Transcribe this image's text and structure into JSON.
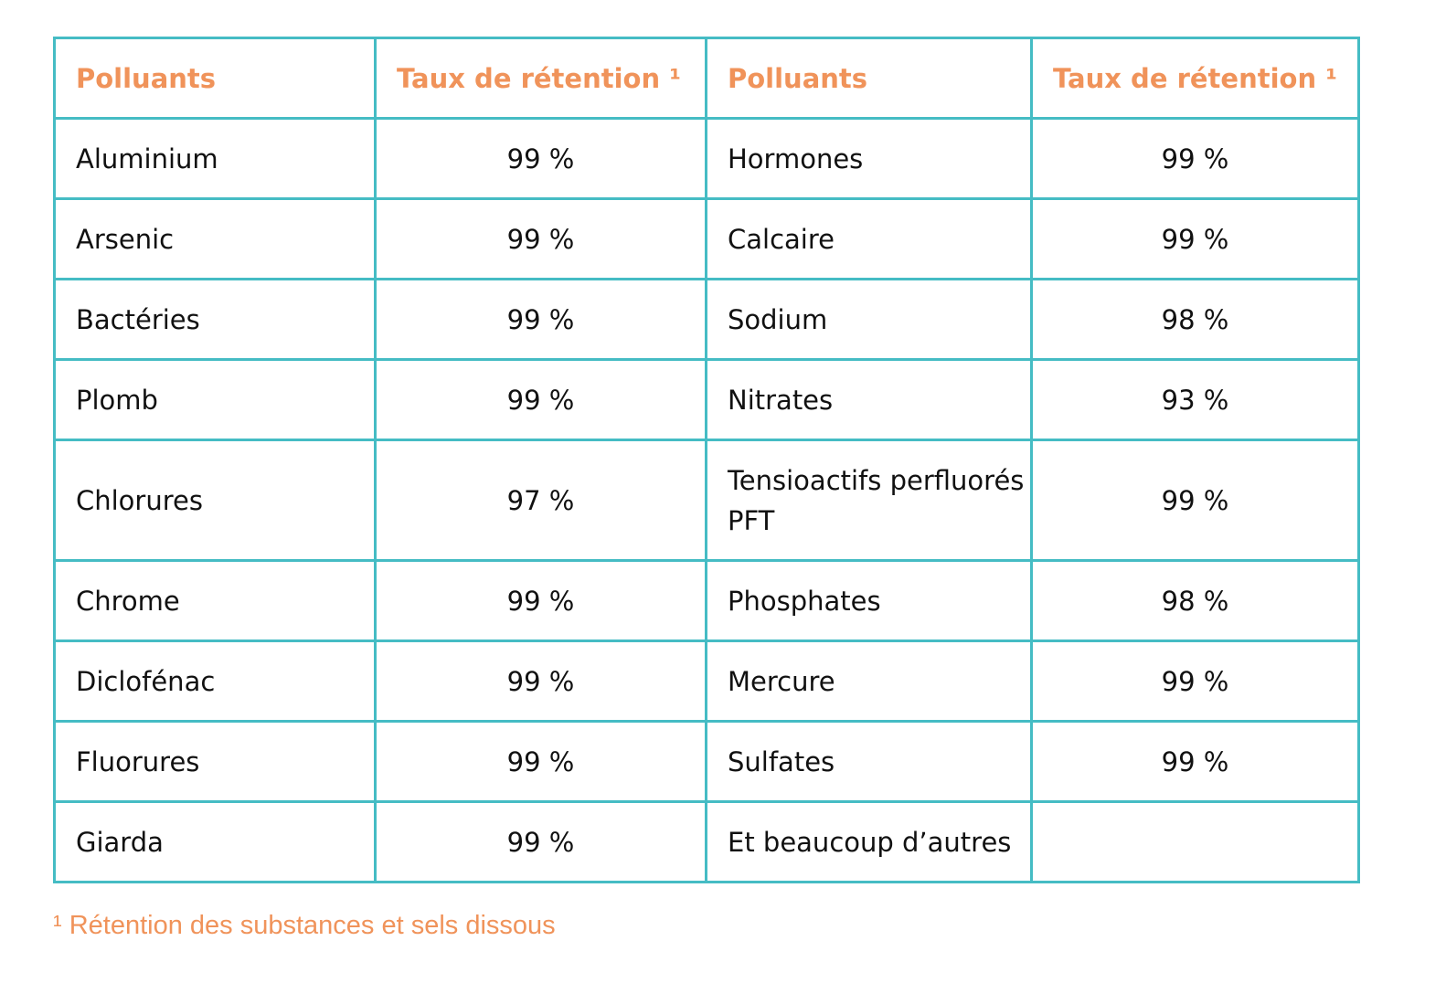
{
  "headers": [
    "Polluants",
    "Taux de rétention ¹",
    "Polluants",
    "Taux de rétention ¹"
  ],
  "rows": [
    {
      "p1": "Aluminium",
      "t1": "99 %",
      "p2": "Hormones",
      "t2": "99 %"
    },
    {
      "p1": "Arsenic",
      "t1": "99 %",
      "p2": "Calcaire",
      "t2": "99 %"
    },
    {
      "p1": "Bactéries",
      "t1": "99 %",
      "p2": "Sodium",
      "t2": "98 %"
    },
    {
      "p1": "Plomb",
      "t1": "99 %",
      "p2": "Nitrates",
      "t2": "93 %"
    },
    {
      "p1": "Chlorures",
      "t1": "97 %",
      "p2": "Tensioactifs perfluorés PFT",
      "t2": "99 %"
    },
    {
      "p1": "Chrome",
      "t1": "99 %",
      "p2": "Phosphates",
      "t2": "98 %"
    },
    {
      "p1": "Diclofénac",
      "t1": "99 %",
      "p2": "Mercure",
      "t2": "99 %"
    },
    {
      "p1": "Fluorures",
      "t1": "99 %",
      "p2": "Sulfates",
      "t2": "99 %"
    },
    {
      "p1": "Giarda",
      "t1": "99 %",
      "p2": "Et beaucoup d’autres",
      "t2": ""
    }
  ],
  "footnote": "¹ Rétention des substances et sels dissous",
  "colors": {
    "border": "#45bcc4",
    "accent": "#f0935a",
    "text": "#111111"
  }
}
